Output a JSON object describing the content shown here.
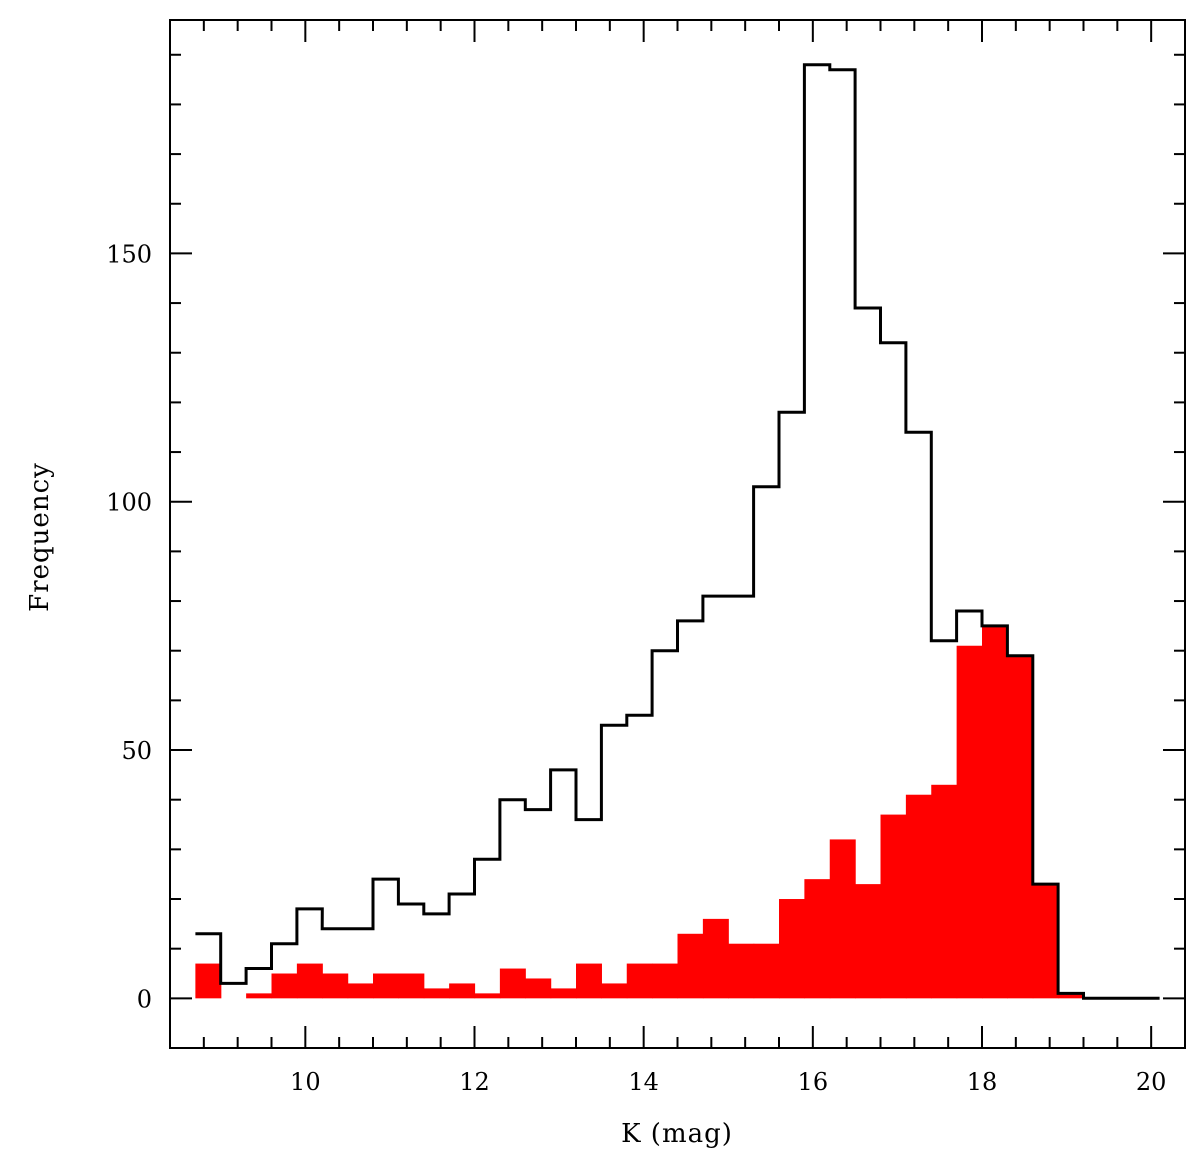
{
  "chart_data": {
    "type": "bar",
    "xlabel": "K (mag)",
    "ylabel": "Frequency",
    "xlim": [
      8.4,
      20.4
    ],
    "ylim": [
      -10,
      197
    ],
    "x_ticks": [
      10,
      12,
      14,
      16,
      18,
      20
    ],
    "y_ticks": [
      0,
      50,
      100,
      150
    ],
    "bin_width": 0.3,
    "bin_starts": [
      8.7,
      9.0,
      9.3,
      9.6,
      9.9,
      10.2,
      10.5,
      10.8,
      11.1,
      11.4,
      11.7,
      12.0,
      12.3,
      12.6,
      12.9,
      13.2,
      13.5,
      13.8,
      14.1,
      14.4,
      14.7,
      15.0,
      15.3,
      15.6,
      15.9,
      16.2,
      16.5,
      16.8,
      17.1,
      17.4,
      17.7,
      18.0,
      18.3,
      18.6,
      18.9,
      19.2,
      19.5,
      19.8
    ],
    "series": [
      {
        "style": "step-outline",
        "color": "#000000",
        "values": [
          13,
          3,
          6,
          11,
          18,
          14,
          14,
          24,
          19,
          17,
          21,
          28,
          40,
          38,
          46,
          36,
          55,
          57,
          70,
          76,
          81,
          81,
          103,
          118,
          188,
          187,
          139,
          132,
          114,
          72,
          78,
          75,
          69,
          23,
          1,
          0,
          0,
          0
        ]
      },
      {
        "style": "filled",
        "color": "#ff0000",
        "values": [
          7,
          0,
          1,
          5,
          7,
          5,
          3,
          5,
          5,
          2,
          3,
          1,
          6,
          4,
          2,
          7,
          3,
          7,
          7,
          13,
          16,
          11,
          11,
          20,
          24,
          32,
          23,
          37,
          41,
          43,
          71,
          75,
          69,
          23,
          1,
          0,
          0,
          0
        ]
      }
    ]
  }
}
